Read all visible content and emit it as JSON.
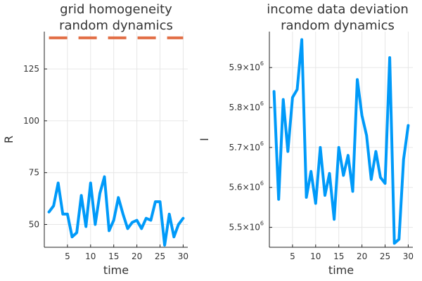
{
  "chart_data": [
    {
      "type": "line",
      "title_lines": [
        "grid homogeneity",
        "random dynamics"
      ],
      "xlabel": "time",
      "ylabel": "R",
      "xlim": [
        0,
        31
      ],
      "ylim": [
        39,
        143
      ],
      "xticks": [
        5,
        10,
        15,
        20,
        25,
        30
      ],
      "yticks": [
        50,
        75,
        100,
        125
      ],
      "grid": true,
      "legend": "none",
      "series": [
        {
          "color": "#009af9",
          "style": "solid",
          "x": [
            1,
            2,
            3,
            4,
            5,
            6,
            7,
            8,
            9,
            10,
            11,
            12,
            13,
            14,
            15,
            16,
            17,
            18,
            19,
            20,
            21,
            22,
            23,
            24,
            25,
            26,
            27,
            28,
            29,
            30
          ],
          "values": [
            56,
            59,
            70,
            55,
            55,
            44,
            46,
            64,
            49,
            70,
            50,
            65,
            73,
            47,
            52,
            63,
            55,
            48,
            51,
            52,
            48,
            53,
            52,
            61,
            61,
            40,
            55,
            44,
            50,
            53
          ]
        },
        {
          "color": "#e26f46",
          "style": "dashed",
          "x": [
            1,
            30
          ],
          "values": [
            140,
            140
          ]
        }
      ]
    },
    {
      "type": "line",
      "title_lines": [
        "income data deviation",
        "random dynamics"
      ],
      "xlabel": "time",
      "ylabel": "I",
      "xlim": [
        0,
        31
      ],
      "ylim": [
        5450000,
        5990000
      ],
      "xticks": [
        5,
        10,
        15,
        20,
        25,
        30
      ],
      "yticks": [
        {
          "value": 5500000,
          "base": "5.5×10",
          "exp": "6"
        },
        {
          "value": 5600000,
          "base": "5.6×10",
          "exp": "6"
        },
        {
          "value": 5700000,
          "base": "5.7×10",
          "exp": "6"
        },
        {
          "value": 5800000,
          "base": "5.8×10",
          "exp": "6"
        },
        {
          "value": 5900000,
          "base": "5.9×10",
          "exp": "6"
        }
      ],
      "grid": true,
      "legend": "none",
      "series": [
        {
          "color": "#009af9",
          "style": "solid",
          "x": [
            1,
            2,
            3,
            4,
            5,
            6,
            7,
            8,
            9,
            10,
            11,
            12,
            13,
            14,
            15,
            16,
            17,
            18,
            19,
            20,
            21,
            22,
            23,
            24,
            25,
            26,
            27,
            28,
            29,
            30
          ],
          "values": [
            5840000,
            5570000,
            5820000,
            5690000,
            5825000,
            5845000,
            5970000,
            5575000,
            5640000,
            5560000,
            5700000,
            5580000,
            5635000,
            5520000,
            5700000,
            5630000,
            5680000,
            5590000,
            5870000,
            5780000,
            5730000,
            5620000,
            5690000,
            5625000,
            5610000,
            5925000,
            5460000,
            5470000,
            5670000,
            5755000
          ]
        }
      ]
    }
  ]
}
